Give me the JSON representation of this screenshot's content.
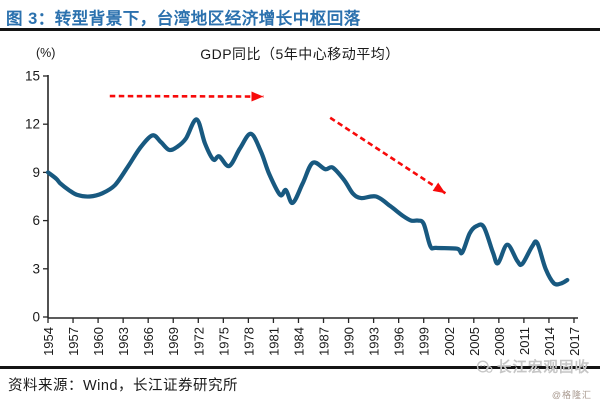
{
  "header": {
    "title": "图 3：转型背景下，台湾地区经济增长中枢回落"
  },
  "chart_data": {
    "type": "line",
    "title": "GDP同比（5年中心移动平均）",
    "unit_label": "(%)",
    "xlim": [
      1954,
      2017.6
    ],
    "ylim": [
      0,
      15
    ],
    "grid": false,
    "y_ticks": [
      15,
      12,
      9,
      6,
      3,
      0
    ],
    "x_ticks": [
      1954,
      1957,
      1960,
      1963,
      1966,
      1969,
      1972,
      1975,
      1978,
      1981,
      1984,
      1987,
      1990,
      1993,
      1996,
      1999,
      2002,
      2005,
      2008,
      2011,
      2014,
      2017
    ],
    "series": [
      {
        "name": "GDP同比（5年中心移动平均）",
        "color": "#185980",
        "points": [
          [
            1954,
            9.0
          ],
          [
            1955,
            8.6
          ],
          [
            1955.5,
            8.3
          ],
          [
            1956.5,
            7.9
          ],
          [
            1957.5,
            7.6
          ],
          [
            1959,
            7.5
          ],
          [
            1960.5,
            7.7
          ],
          [
            1962,
            8.2
          ],
          [
            1963.5,
            9.3
          ],
          [
            1965,
            10.5
          ],
          [
            1966.5,
            11.3
          ],
          [
            1967.5,
            10.9
          ],
          [
            1968.5,
            10.4
          ],
          [
            1969.5,
            10.6
          ],
          [
            1970.5,
            11.1
          ],
          [
            1971.8,
            12.3
          ],
          [
            1972.8,
            10.8
          ],
          [
            1973.8,
            9.8
          ],
          [
            1974.5,
            10.0
          ],
          [
            1975.7,
            9.4
          ],
          [
            1977,
            10.5
          ],
          [
            1978.3,
            11.4
          ],
          [
            1979.5,
            10.3
          ],
          [
            1980.5,
            8.9
          ],
          [
            1981.8,
            7.6
          ],
          [
            1982.5,
            7.9
          ],
          [
            1983.3,
            7.1
          ],
          [
            1984.5,
            8.3
          ],
          [
            1985.7,
            9.6
          ],
          [
            1987.2,
            9.2
          ],
          [
            1988.1,
            9.3
          ],
          [
            1989.5,
            8.5
          ],
          [
            1990.5,
            7.7
          ],
          [
            1991.5,
            7.4
          ],
          [
            1993.3,
            7.5
          ],
          [
            1995,
            6.9
          ],
          [
            1996.5,
            6.3
          ],
          [
            1997.5,
            6.0
          ],
          [
            1998.3,
            6.0
          ],
          [
            1999,
            5.8
          ],
          [
            1999.8,
            4.4
          ],
          [
            2000.5,
            4.3
          ],
          [
            2003,
            4.25
          ],
          [
            2003.6,
            4.0
          ],
          [
            2004.5,
            5.2
          ],
          [
            2005.3,
            5.65
          ],
          [
            2006.2,
            5.6
          ],
          [
            2007.3,
            4.0
          ],
          [
            2007.9,
            3.35
          ],
          [
            2009,
            4.5
          ],
          [
            2010.2,
            3.5
          ],
          [
            2010.8,
            3.3
          ],
          [
            2012,
            4.4
          ],
          [
            2012.6,
            4.6
          ],
          [
            2013.6,
            3.0
          ],
          [
            2014.6,
            2.1
          ],
          [
            2015.5,
            2.1
          ],
          [
            2016.2,
            2.3
          ]
        ]
      }
    ],
    "annotations": [
      {
        "name": "trend-arrow-flat",
        "type": "arrow",
        "style": "dashed",
        "color": "#F70A0A",
        "from": [
          1961.4,
          13.75
        ],
        "to": [
          1979.8,
          13.72
        ]
      },
      {
        "name": "trend-arrow-down",
        "type": "arrow",
        "style": "dashed",
        "color": "#F70A0A",
        "from": [
          1987.8,
          12.4
        ],
        "to": [
          2001.6,
          7.7
        ]
      }
    ]
  },
  "footer": {
    "source": "资料来源：Wind，长江证券研究所",
    "watermark": "长江宏观固收",
    "badge": "@格隆汇"
  },
  "colors": {
    "title_blue": "#2B71AE",
    "line_blue": "#185980",
    "arrow_red": "#F70A0A",
    "axis": "#262626",
    "watermark_gray": "#C6C6C6"
  }
}
